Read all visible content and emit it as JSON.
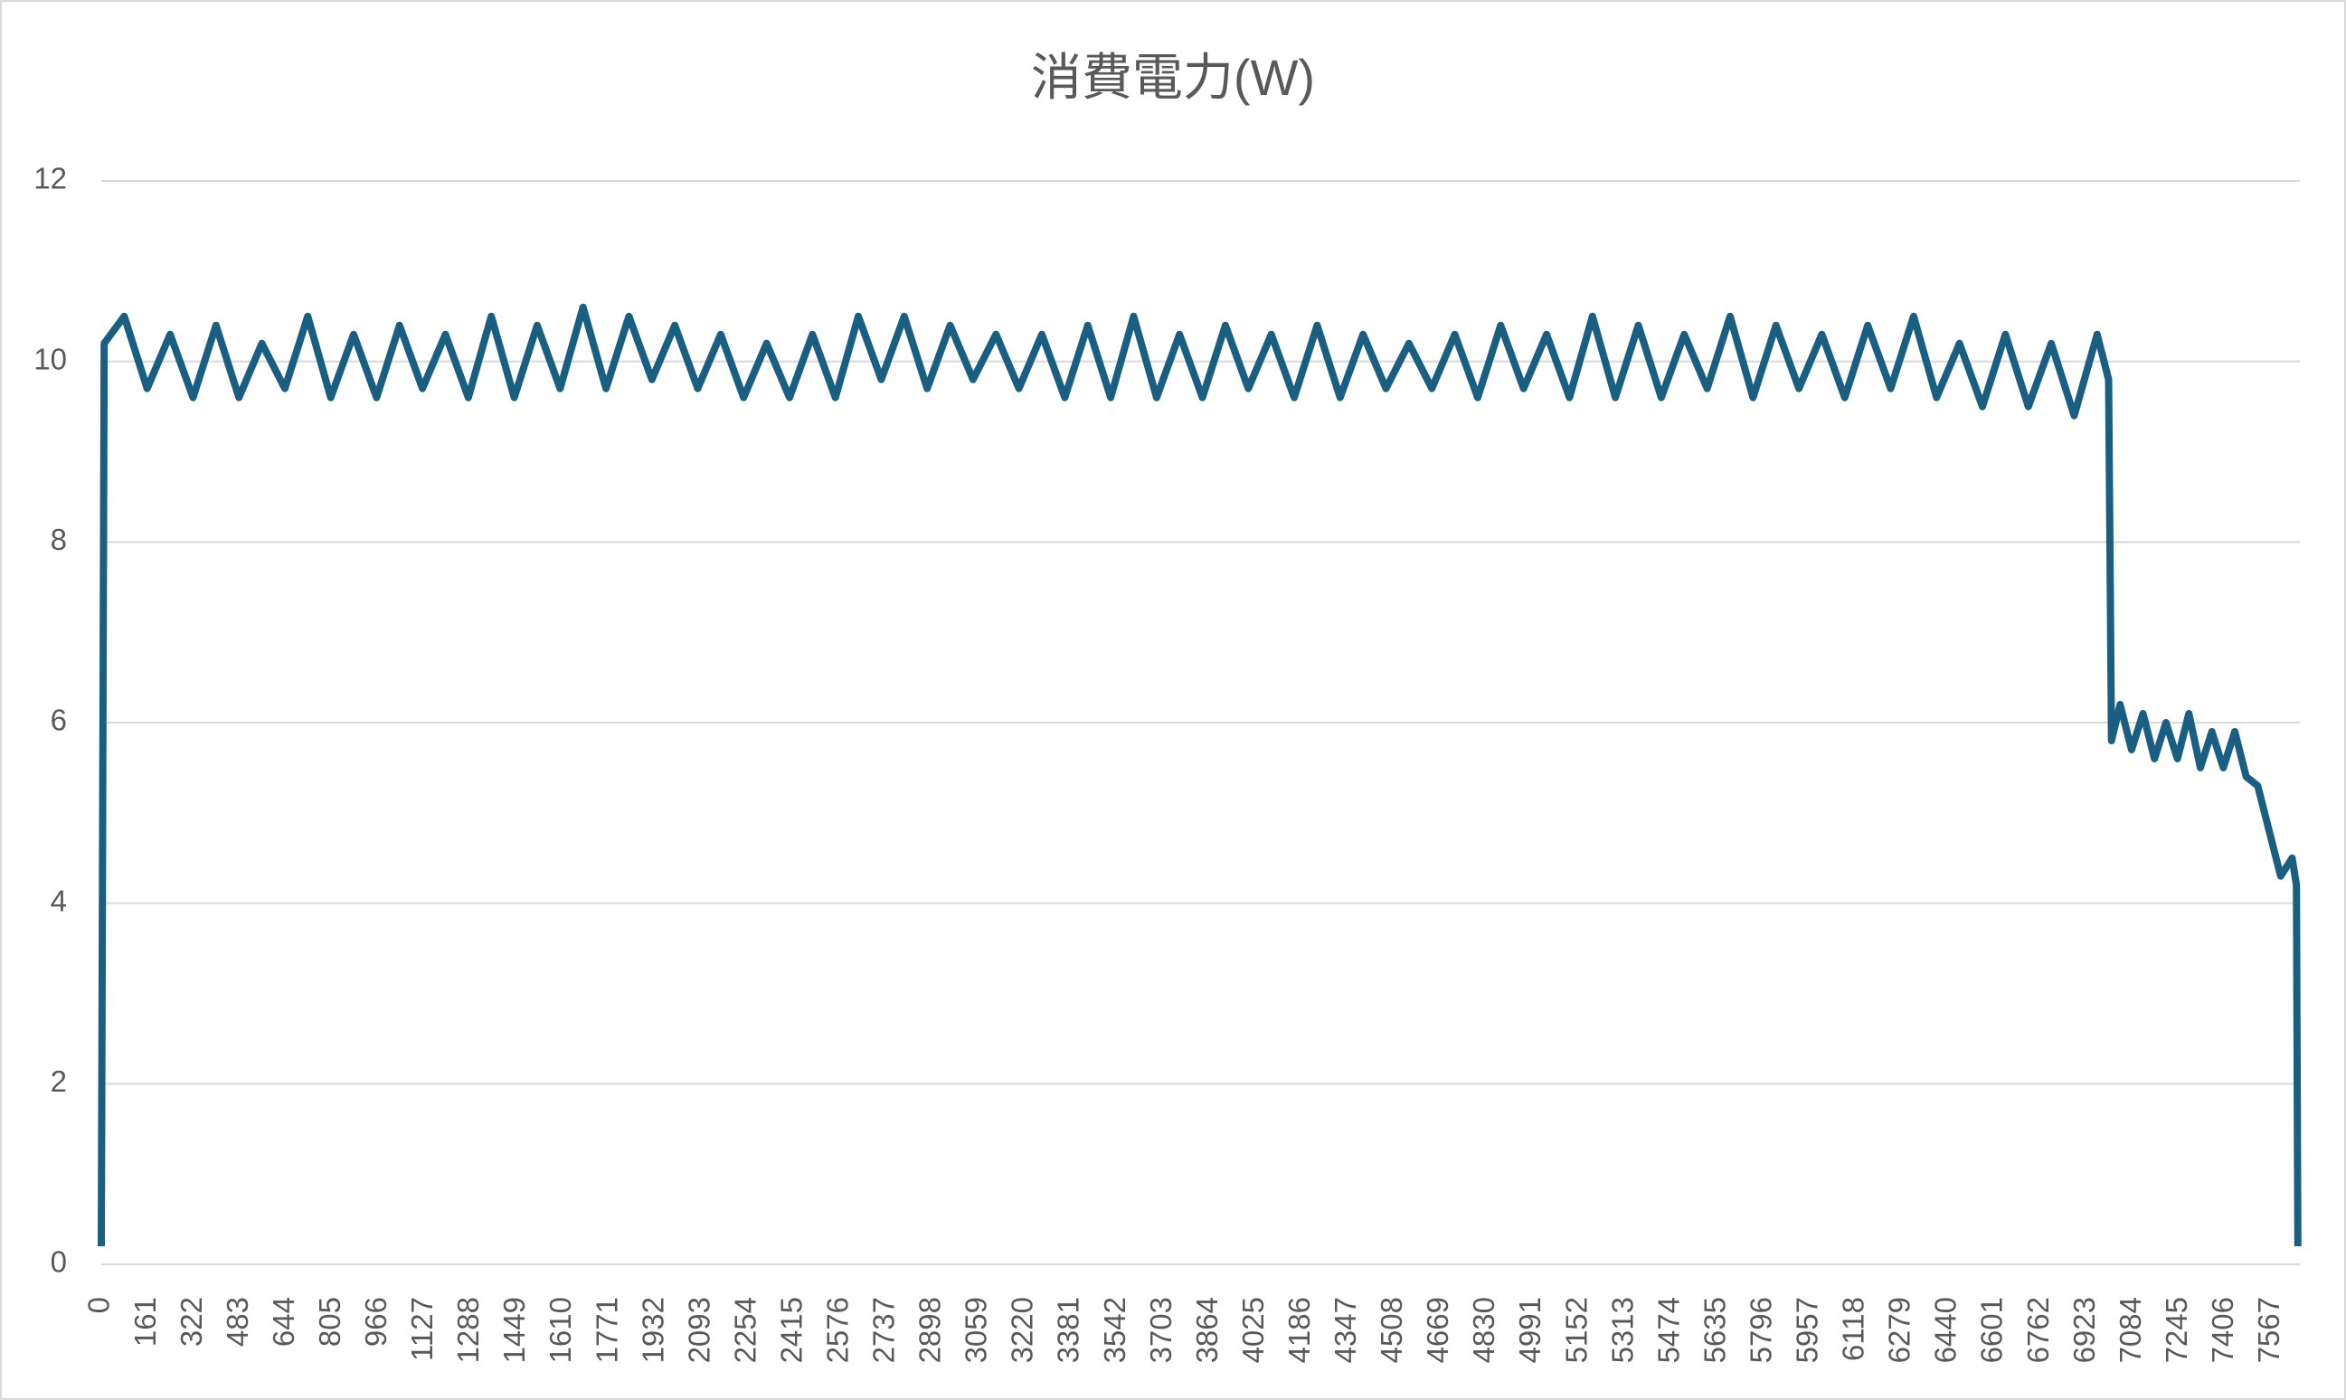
{
  "chart_data": {
    "type": "line",
    "title": "消費電力(W)",
    "x": [
      0,
      10,
      80,
      160,
      240,
      320,
      400,
      480,
      560,
      640,
      720,
      800,
      880,
      960,
      1040,
      1120,
      1200,
      1280,
      1360,
      1440,
      1520,
      1600,
      1680,
      1760,
      1840,
      1920,
      2000,
      2080,
      2160,
      2240,
      2320,
      2400,
      2480,
      2560,
      2640,
      2720,
      2800,
      2880,
      2960,
      3040,
      3120,
      3200,
      3280,
      3360,
      3440,
      3520,
      3600,
      3680,
      3760,
      3840,
      3920,
      4000,
      4080,
      4160,
      4240,
      4320,
      4400,
      4480,
      4560,
      4640,
      4720,
      4800,
      4880,
      4960,
      5040,
      5120,
      5200,
      5280,
      5360,
      5440,
      5520,
      5600,
      5680,
      5760,
      5840,
      5920,
      6000,
      6080,
      6160,
      6240,
      6320,
      6400,
      6480,
      6560,
      6640,
      6720,
      6800,
      6880,
      6960,
      7000,
      7010,
      7040,
      7080,
      7120,
      7160,
      7200,
      7240,
      7280,
      7320,
      7360,
      7400,
      7440,
      7480,
      7520,
      7560,
      7600,
      7640,
      7655,
      7660
    ],
    "series": [
      {
        "color": "#1a5f82",
        "values": [
          0.2,
          10.2,
          10.5,
          9.7,
          10.3,
          9.6,
          10.4,
          9.6,
          10.2,
          9.7,
          10.5,
          9.6,
          10.3,
          9.6,
          10.4,
          9.7,
          10.3,
          9.6,
          10.5,
          9.6,
          10.4,
          9.7,
          10.6,
          9.7,
          10.5,
          9.8,
          10.4,
          9.7,
          10.3,
          9.6,
          10.2,
          9.6,
          10.3,
          9.6,
          10.5,
          9.8,
          10.5,
          9.7,
          10.4,
          9.8,
          10.3,
          9.7,
          10.3,
          9.6,
          10.4,
          9.6,
          10.5,
          9.6,
          10.3,
          9.6,
          10.4,
          9.7,
          10.3,
          9.6,
          10.4,
          9.6,
          10.3,
          9.7,
          10.2,
          9.7,
          10.3,
          9.6,
          10.4,
          9.7,
          10.3,
          9.6,
          10.5,
          9.6,
          10.4,
          9.6,
          10.3,
          9.7,
          10.5,
          9.6,
          10.4,
          9.7,
          10.3,
          9.6,
          10.4,
          9.7,
          10.5,
          9.6,
          10.2,
          9.5,
          10.3,
          9.5,
          10.2,
          9.4,
          10.3,
          9.8,
          5.8,
          6.2,
          5.7,
          6.1,
          5.6,
          6.0,
          5.6,
          6.1,
          5.5,
          5.9,
          5.5,
          5.9,
          5.4,
          5.3,
          4.8,
          4.3,
          4.5,
          4.2,
          0.2
        ]
      }
    ],
    "xlim": [
      0,
      7667
    ],
    "xticks": [
      0,
      161,
      322,
      483,
      644,
      805,
      966,
      1127,
      1288,
      1449,
      1610,
      1771,
      1932,
      2093,
      2254,
      2415,
      2576,
      2737,
      2898,
      3059,
      3220,
      3381,
      3542,
      3703,
      3864,
      4025,
      4186,
      4347,
      4508,
      4669,
      4830,
      4991,
      5152,
      5313,
      5474,
      5635,
      5796,
      5957,
      6118,
      6279,
      6440,
      6601,
      6762,
      6923,
      7084,
      7245,
      7406,
      7567
    ],
    "ylim": [
      0,
      12
    ],
    "yticks": [
      0,
      2,
      4,
      6,
      8,
      10,
      12
    ],
    "grid": true
  }
}
